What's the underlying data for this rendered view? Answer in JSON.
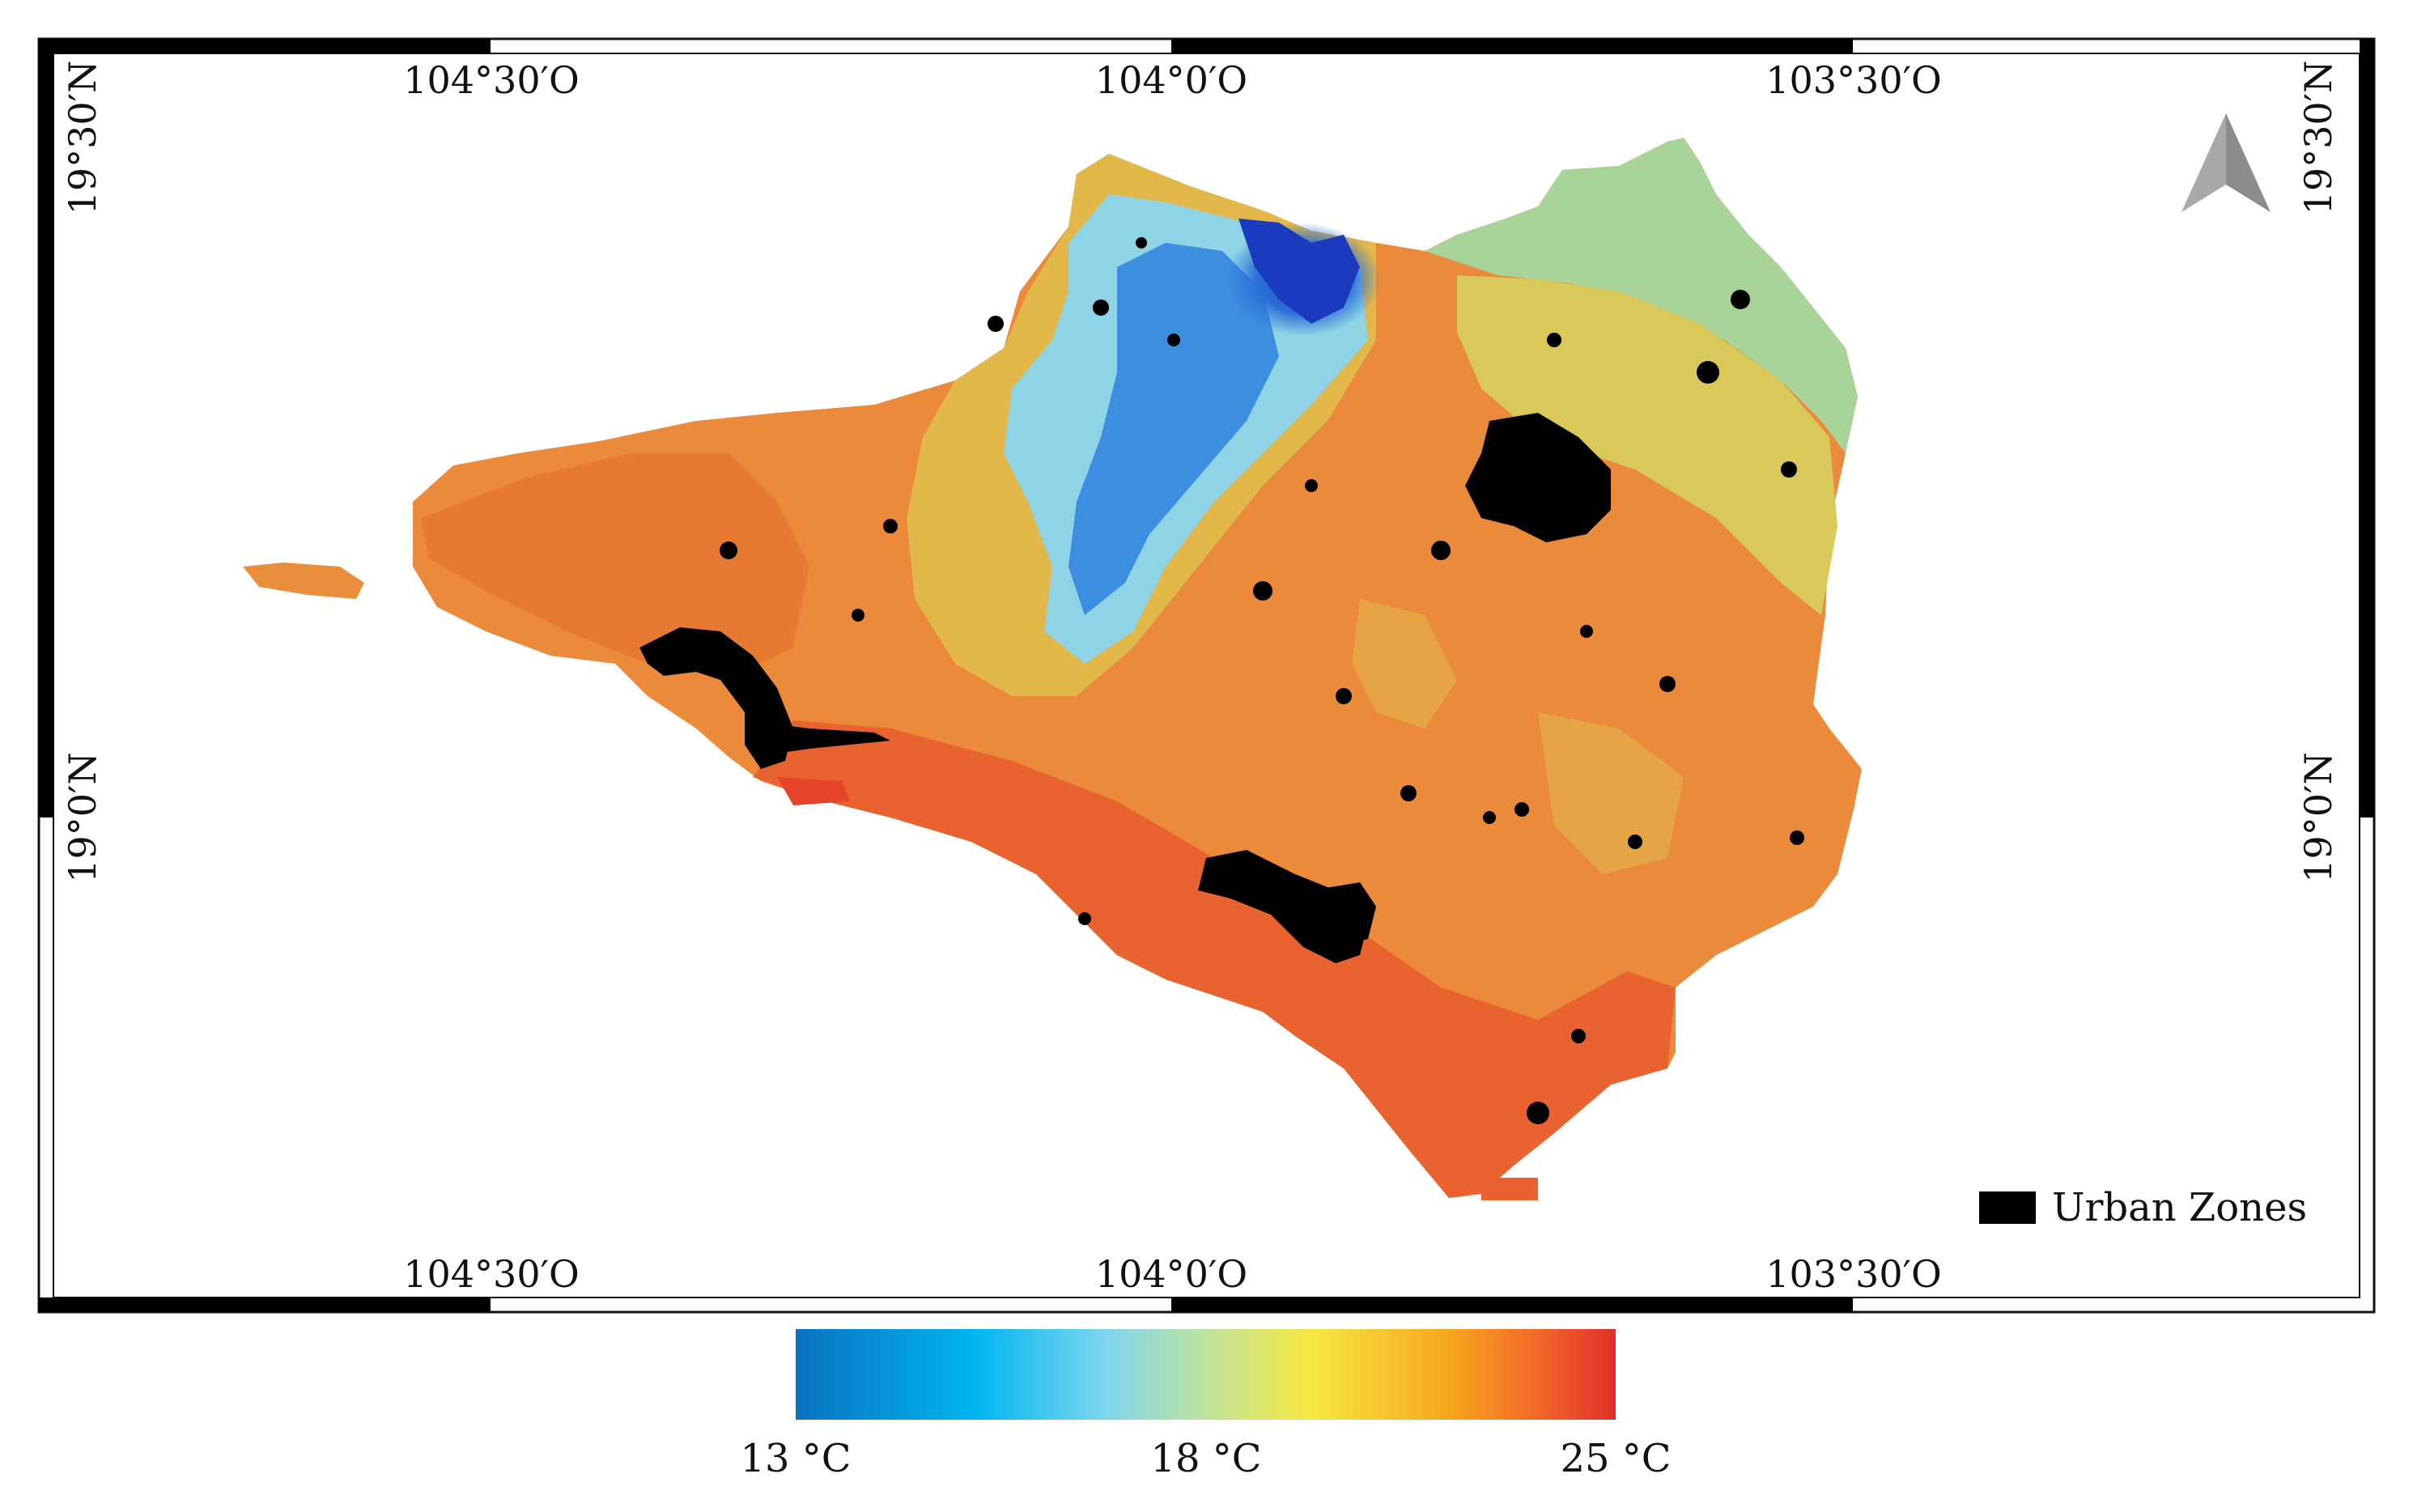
{
  "map": {
    "coords": {
      "lon_1": "104°30′O",
      "lon_2": "104°0′O",
      "lon_3": "103°30′O",
      "lat_1": "19°30′N",
      "lat_2": "19°0′N"
    },
    "north_arrow_icon": "north-arrow-icon",
    "legend": {
      "urban_label": "Urban Zones",
      "urban_color": "#000000"
    }
  },
  "colorbar": {
    "min_label": "13 °C",
    "mid_label": "18 °C",
    "max_label": "25 °C",
    "gradient_colors": [
      "#0a72c0",
      "#00b6f0",
      "#7fd6ee",
      "#bfe39c",
      "#f6e840",
      "#f7a51c",
      "#f36b2a",
      "#e0302a"
    ]
  }
}
